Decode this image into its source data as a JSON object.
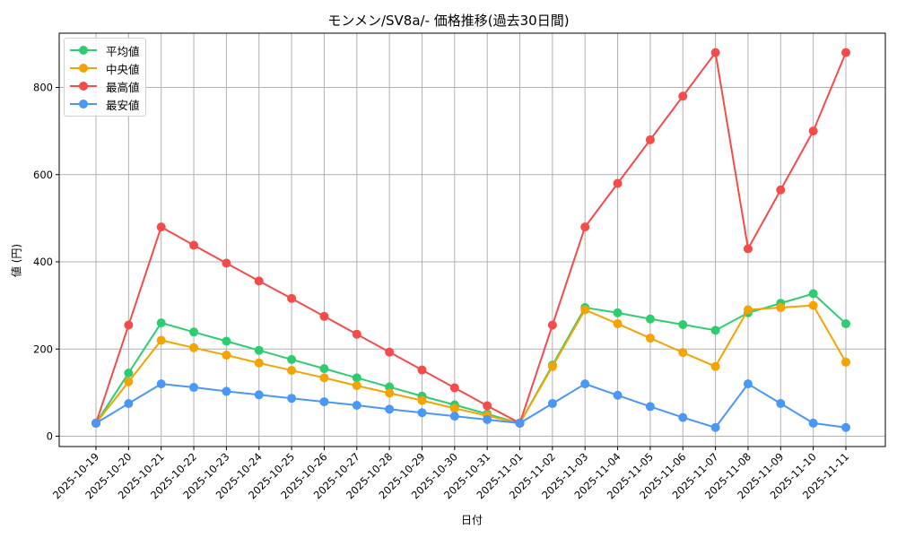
{
  "chart_data": {
    "type": "line",
    "title": "モンメン/SV8a/- 価格推移(過去30日間)",
    "xlabel": "日付",
    "ylabel": "値 (円)",
    "ylim": [
      -25,
      925
    ],
    "yticks": [
      0,
      200,
      400,
      600,
      800
    ],
    "grid": true,
    "legend_position": "upper left",
    "categories": [
      "2025-10-19",
      "2025-10-20",
      "2025-10-21",
      "2025-10-22",
      "2025-10-23",
      "2025-10-24",
      "2025-10-25",
      "2025-10-26",
      "2025-10-27",
      "2025-10-28",
      "2025-10-29",
      "2025-10-30",
      "2025-10-31",
      "2025-11-01",
      "2025-11-02",
      "2025-11-03",
      "2025-11-04",
      "2025-11-05",
      "2025-11-06",
      "2025-11-07",
      "2025-11-08",
      "2025-11-09",
      "2025-11-10",
      "2025-11-11"
    ],
    "series": [
      {
        "name": "平均値",
        "color": "#2ecc71",
        "values": [
          30,
          145,
          260,
          239,
          218,
          197,
          176,
          155,
          134,
          113,
          92,
          72,
          51,
          30,
          163,
          295,
          283,
          269,
          256,
          243,
          283,
          305,
          327,
          258
        ]
      },
      {
        "name": "中央値",
        "color": "#f5a300",
        "values": [
          30,
          125,
          220,
          203,
          186,
          168,
          151,
          134,
          116,
          99,
          82,
          64,
          47,
          30,
          160,
          290,
          258,
          225,
          192,
          160,
          290,
          295,
          300,
          170
        ]
      },
      {
        "name": "最高値",
        "color": "#f44b4b",
        "values": [
          30,
          255,
          480,
          438,
          397,
          356,
          316,
          275,
          234,
          193,
          152,
          111,
          70,
          30,
          255,
          480,
          580,
          680,
          780,
          880,
          430,
          565,
          700,
          880
        ]
      },
      {
        "name": "最安値",
        "color": "#4a97f5",
        "values": [
          30,
          75,
          120,
          112,
          103,
          95,
          87,
          79,
          71,
          62,
          54,
          46,
          38,
          30,
          75,
          120,
          94,
          68,
          43,
          20,
          120,
          75,
          30,
          20
        ]
      }
    ]
  }
}
